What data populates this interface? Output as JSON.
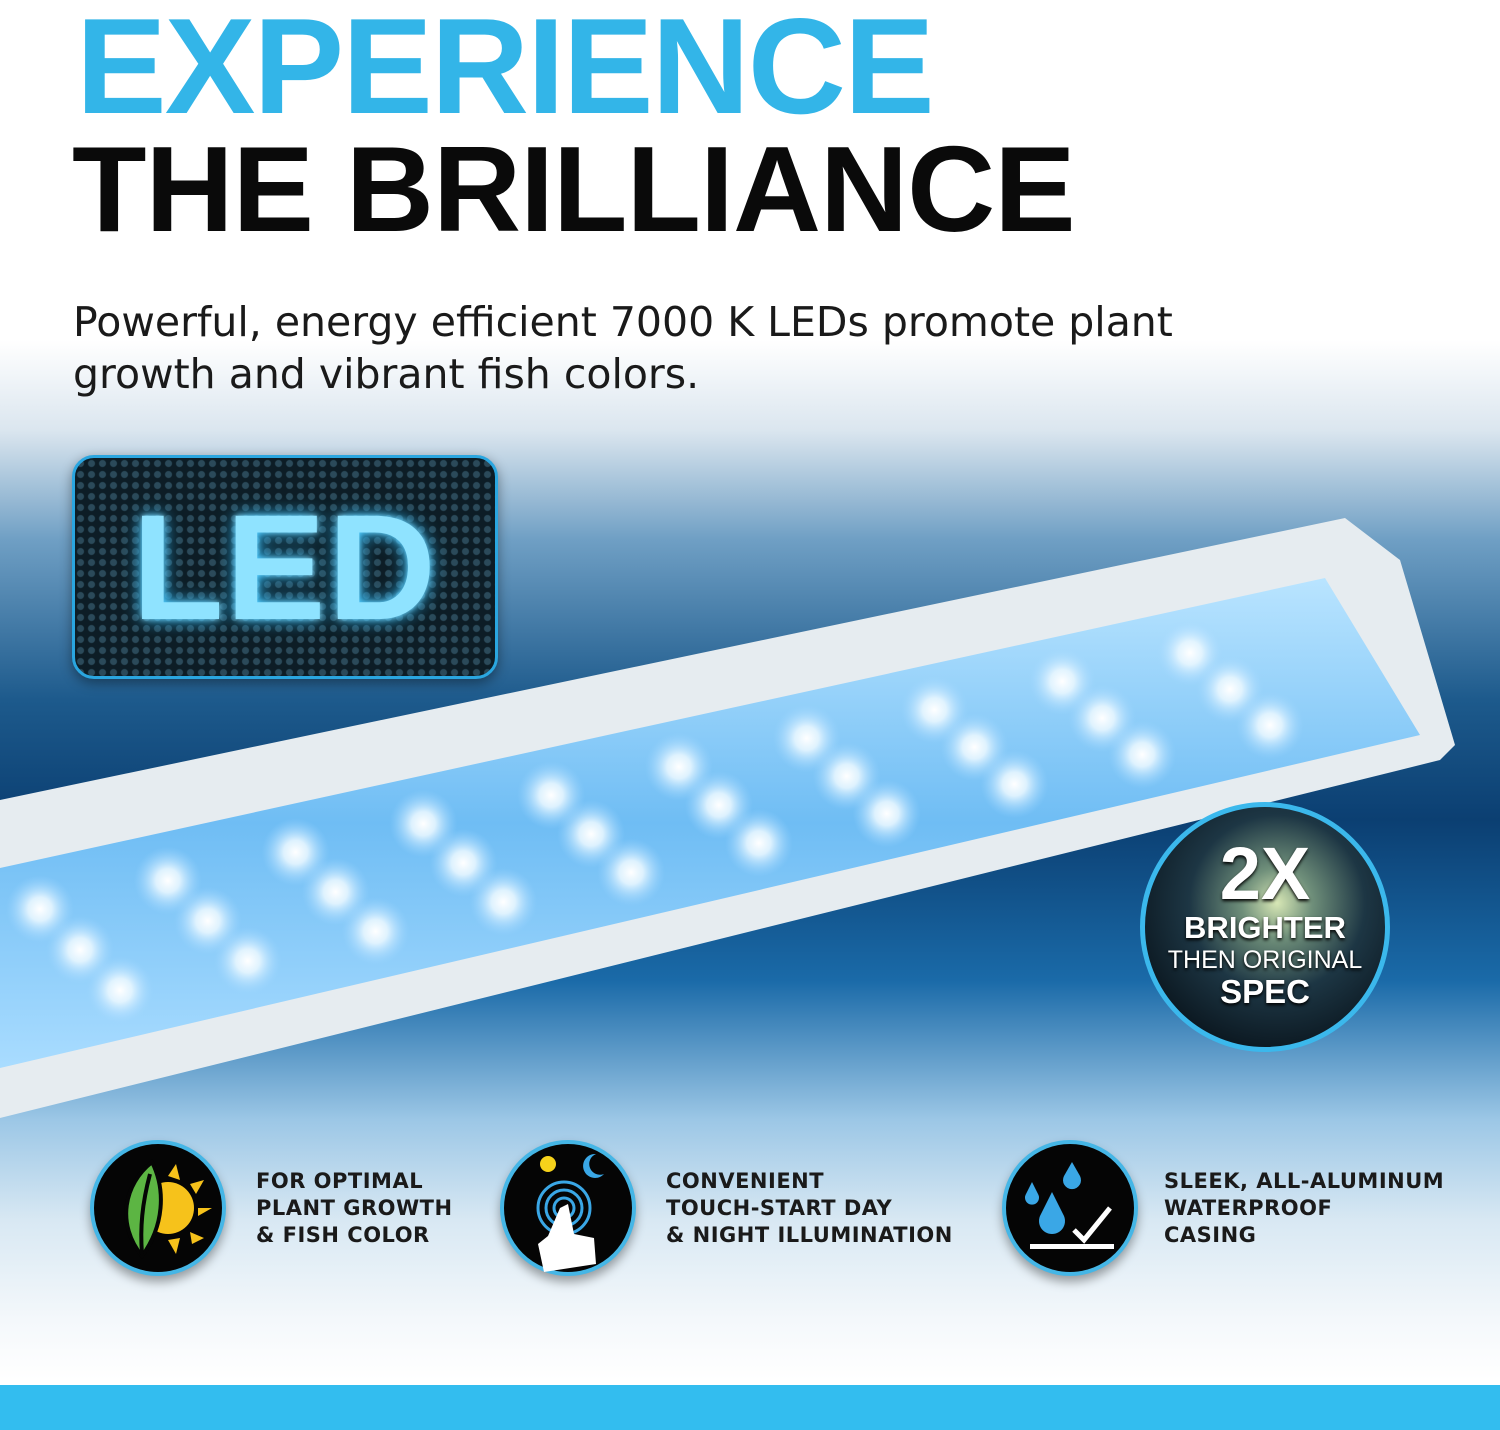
{
  "headline": {
    "line1": "EXPERIENCE",
    "line2": "THE BRILLIANCE"
  },
  "subtitle": "Powerful, energy efficient 7000 K LEDs promote plant growth and vibrant fish colors.",
  "led_badge": {
    "text": "LED"
  },
  "brightness_badge": {
    "big": "2X",
    "line2": "BRIGHTER",
    "line3": "THEN ORIGINAL",
    "line4": "SPEC"
  },
  "features": [
    {
      "icon": "leaf-sun-icon",
      "lines": [
        "FOR OPTIMAL",
        "PLANT GROWTH",
        "& FISH COLOR"
      ]
    },
    {
      "icon": "touch-day-night-icon",
      "lines": [
        "CONVENIENT",
        "TOUCH-START DAY",
        "& NIGHT ILLUMINATION"
      ]
    },
    {
      "icon": "waterproof-icon",
      "lines": [
        "SLEEK, ALL-ALUMINUM",
        "WATERPROOF",
        "CASING"
      ]
    }
  ],
  "colors": {
    "accent": "#33b5e8",
    "bar": "#33bdef",
    "text": "#1a1a1a"
  }
}
